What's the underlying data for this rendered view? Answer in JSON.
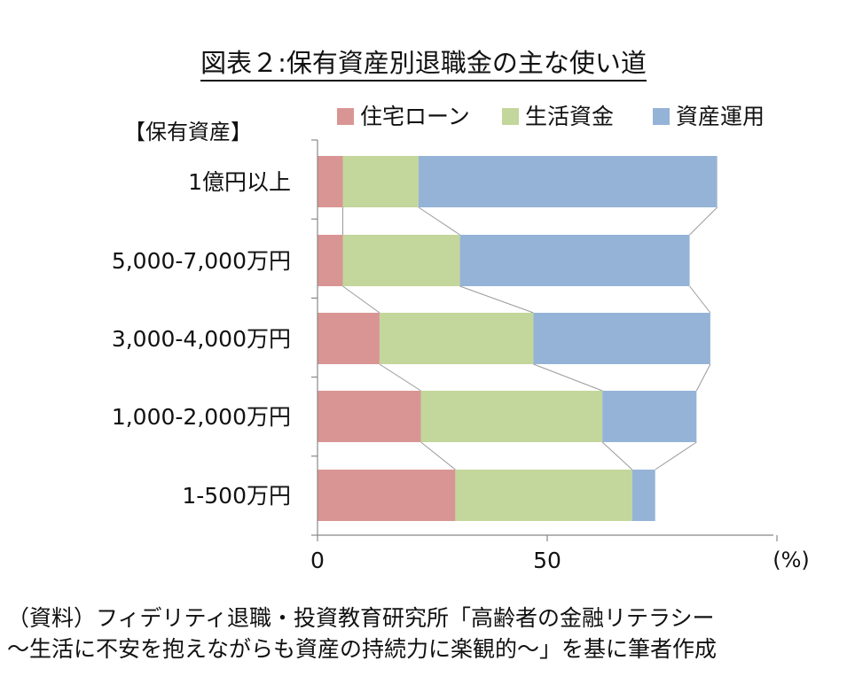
{
  "title": "図表２:保有資産別退職金の主な使い道",
  "chart_data": {
    "type": "bar",
    "orientation": "horizontal",
    "stacked": true,
    "category_axis_title": "【保有資産】",
    "categories": [
      "1億円以上",
      "5,000-7,000万円",
      "3,000-4,000万円",
      "1,000-2,000万円",
      "1-500万円"
    ],
    "series": [
      {
        "name": "住宅ローン",
        "color": "#d99594",
        "values": [
          5.5,
          5.5,
          13.5,
          22.5,
          30
        ]
      },
      {
        "name": "生活資金",
        "color": "#c3d69b",
        "values": [
          16.5,
          25.5,
          33.5,
          39.5,
          38.5
        ]
      },
      {
        "name": "資産運用",
        "color": "#95b3d7",
        "values": [
          65,
          50,
          38.5,
          20.5,
          5
        ]
      }
    ],
    "x_ticks": [
      0,
      50
    ],
    "xlim": [
      0,
      100
    ],
    "x_unit": "(%)",
    "legend_position": "top",
    "series_lines": true,
    "grid": false
  },
  "source_line1": "（資料）フィデリティ退職・投資教育研究所「高齢者の金融リテラシー",
  "source_line2": "～生活に不安を抱えながらも資産の持続力に楽観的～」を基に筆者作成"
}
